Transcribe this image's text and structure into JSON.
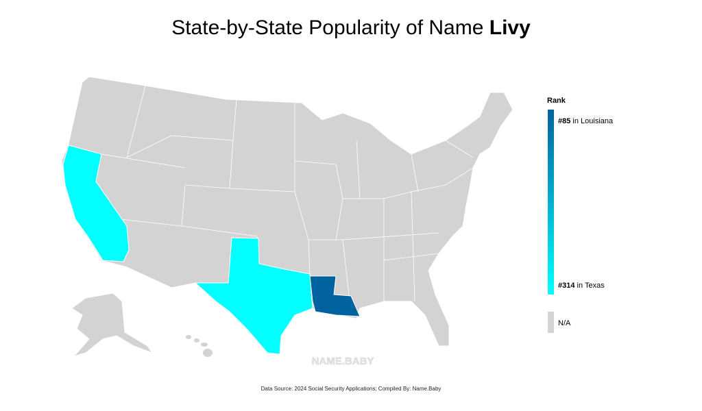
{
  "title": {
    "text": "State-by-State Popularity of Name ",
    "name": "Livy"
  },
  "legend": {
    "title": "Rank",
    "entries": [
      {
        "rank": 85,
        "rank_label": "#85",
        "text": " in Louisiana"
      },
      {
        "rank": 314,
        "rank_label": "#314",
        "text": " in Texas"
      }
    ],
    "colors": [
      "#0063a0",
      "#00ffff"
    ],
    "na_label": "N/A",
    "na_color": "#d3d3d3"
  },
  "watermark": "NAME.BABY",
  "source": "Data Source: 2024 Social Security Applications; Compiled By: Name.Baby"
}
